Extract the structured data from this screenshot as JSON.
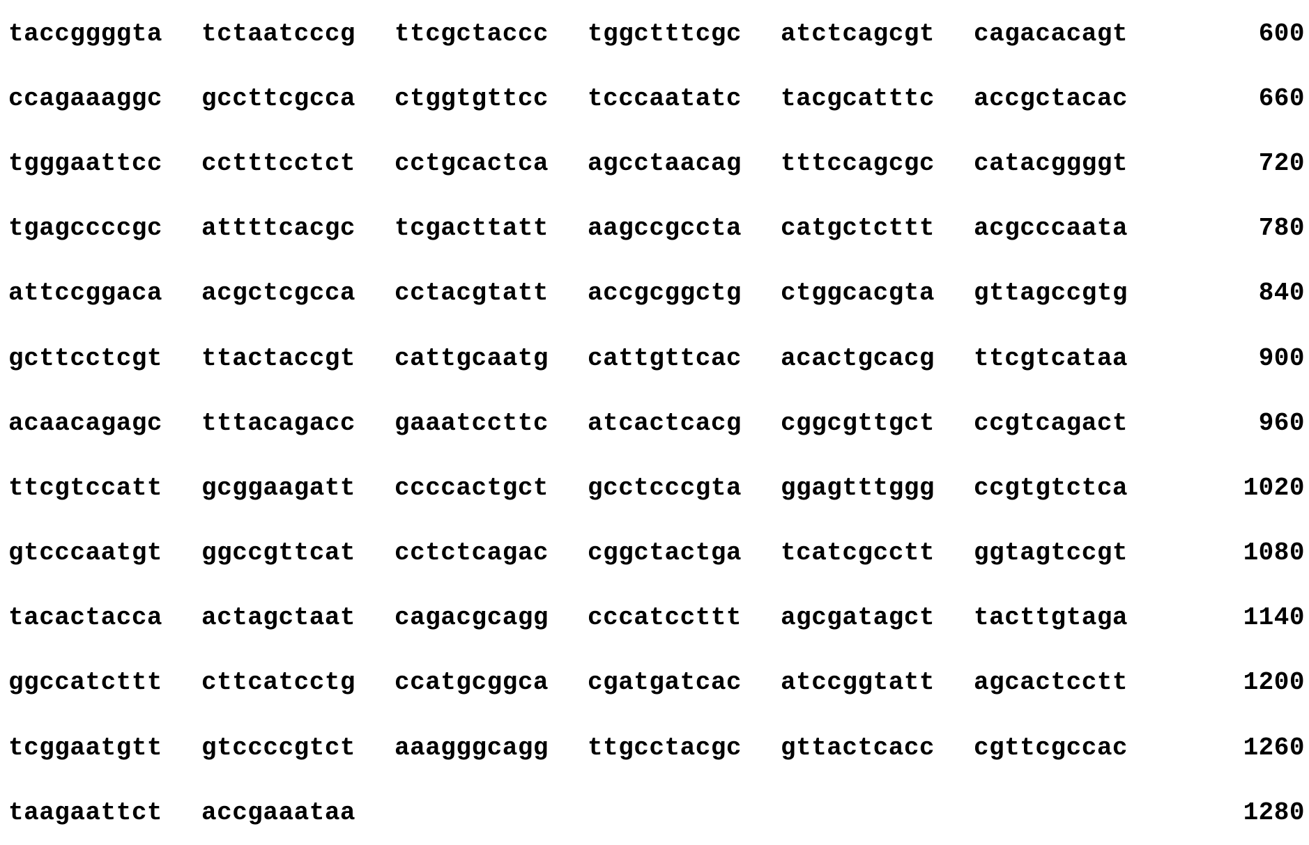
{
  "rows": [
    {
      "chunks": [
        "taccggggta",
        "tctaatcccg",
        "ttcgctaccc",
        "tggctttcgc",
        "atctcagcgt",
        "cagacacagt"
      ],
      "position": "600"
    },
    {
      "chunks": [
        "ccagaaaggc",
        "gccttcgcca",
        "ctggtgttcc",
        "tcccaatatc",
        "tacgcatttc",
        "accgctacac"
      ],
      "position": "660"
    },
    {
      "chunks": [
        "tgggaattcc",
        "cctttcctct",
        "cctgcactca",
        "agcctaacag",
        "tttccagcgc",
        "catacggggt"
      ],
      "position": "720"
    },
    {
      "chunks": [
        "tgagccccgc",
        "attttcacgc",
        "tcgacttatt",
        "aagccgccta",
        "catgctcttt",
        "acgcccaata"
      ],
      "position": "780"
    },
    {
      "chunks": [
        "attccggaca",
        "acgctcgcca",
        "cctacgtatt",
        "accgcggctg",
        "ctggcacgta",
        "gttagccgtg"
      ],
      "position": "840"
    },
    {
      "chunks": [
        "gcttcctcgt",
        "ttactaccgt",
        "cattgcaatg",
        "cattgttcac",
        "acactgcacg",
        "ttcgtcataa"
      ],
      "position": "900"
    },
    {
      "chunks": [
        "acaacagagc",
        "tttacagacc",
        "gaaatccttc",
        "atcactcacg",
        "cggcgttgct",
        "ccgtcagact"
      ],
      "position": "960"
    },
    {
      "chunks": [
        "ttcgtccatt",
        "gcggaagatt",
        "ccccactgct",
        "gcctcccgta",
        "ggagtttggg",
        "ccgtgtctca"
      ],
      "position": "1020"
    },
    {
      "chunks": [
        "gtcccaatgt",
        "ggccgttcat",
        "cctctcagac",
        "cggctactga",
        "tcatcgcctt",
        "ggtagtccgt"
      ],
      "position": "1080"
    },
    {
      "chunks": [
        "tacactacca",
        "actagctaat",
        "cagacgcagg",
        "cccatccttt",
        "agcgatagct",
        "tacttgtaga"
      ],
      "position": "1140"
    },
    {
      "chunks": [
        "ggccatcttt",
        "cttcatcctg",
        "ccatgcggca",
        "cgatgatcac",
        "atccggtatt",
        "agcactcctt"
      ],
      "position": "1200"
    },
    {
      "chunks": [
        "tcggaatgtt",
        "gtccccgtct",
        "aaagggcagg",
        "ttgcctacgc",
        "gttactcacc",
        "cgttcgccac"
      ],
      "position": "1260"
    },
    {
      "chunks": [
        "taagaattct",
        "accgaaataa"
      ],
      "position": "1280"
    }
  ]
}
